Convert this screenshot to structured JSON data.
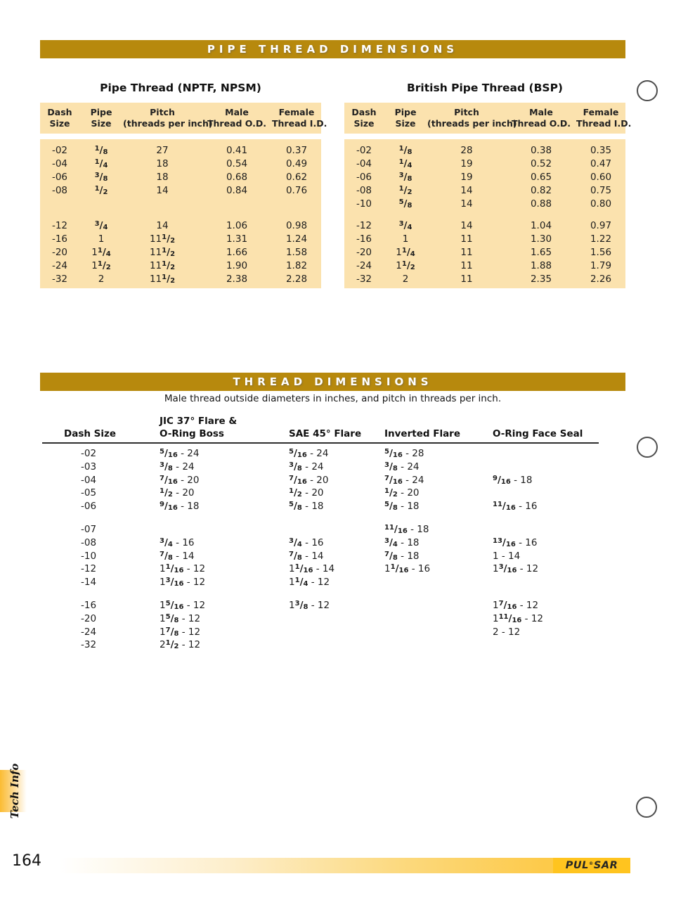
{
  "page": {
    "number": "164",
    "side_tab_label": "Tech Info",
    "footer_logo": {
      "pre": "PUL",
      "reg": "®",
      "post": "SAR"
    }
  },
  "colors": {
    "banner_gold": "#b7890d",
    "table_peach": "#fbe2ae",
    "footer_yellow": "#ffc41f"
  },
  "pipe_thread": {
    "banner": "PIPE THREAD DIMENSIONS",
    "tables": [
      {
        "title": "Pipe Thread (NPTF, NPSM)",
        "headers": [
          [
            "Dash",
            "Size"
          ],
          [
            "Pipe",
            "Size"
          ],
          [
            "Pitch",
            "(threads per inch)"
          ],
          [
            "Male",
            "Thread O.D."
          ],
          [
            "Female",
            "Thread I.D."
          ]
        ],
        "group1": [
          [
            "-02",
            "1/8",
            "27",
            "0.41",
            "0.37"
          ],
          [
            "-04",
            "1/4",
            "18",
            "0.54",
            "0.49"
          ],
          [
            "-06",
            "3/8",
            "18",
            "0.68",
            "0.62"
          ],
          [
            "-08",
            "1/2",
            "14",
            "0.84",
            "0.76"
          ]
        ],
        "group2": [
          [
            "-12",
            "3/4",
            "14",
            "1.06",
            "0.98"
          ],
          [
            "-16",
            "1",
            "11 1/2",
            "1.31",
            "1.24"
          ],
          [
            "-20",
            "1 1/4",
            "11 1/2",
            "1.66",
            "1.58"
          ],
          [
            "-24",
            "1 1/2",
            "11 1/2",
            "1.90",
            "1.82"
          ],
          [
            "-32",
            "2",
            "11 1/2",
            "2.38",
            "2.28"
          ]
        ]
      },
      {
        "title": "British Pipe Thread (BSP)",
        "headers": [
          [
            "Dash",
            "Size"
          ],
          [
            "Pipe",
            "Size"
          ],
          [
            "Pitch",
            "(threads per inch)"
          ],
          [
            "Male",
            "Thread O.D."
          ],
          [
            "Female",
            "Thread I.D."
          ]
        ],
        "group1": [
          [
            "-02",
            "1/8",
            "28",
            "0.38",
            "0.35"
          ],
          [
            "-04",
            "1/4",
            "19",
            "0.52",
            "0.47"
          ],
          [
            "-06",
            "3/8",
            "19",
            "0.65",
            "0.60"
          ],
          [
            "-08",
            "1/2",
            "14",
            "0.82",
            "0.75"
          ],
          [
            "-10",
            "5/8",
            "14",
            "0.88",
            "0.80"
          ]
        ],
        "group2": [
          [
            "-12",
            "3/4",
            "14",
            "1.04",
            "0.97"
          ],
          [
            "-16",
            "1",
            "11",
            "1.30",
            "1.22"
          ],
          [
            "-20",
            "1 1/4",
            "11",
            "1.65",
            "1.56"
          ],
          [
            "-24",
            "1 1/2",
            "11",
            "1.88",
            "1.79"
          ],
          [
            "-32",
            "2",
            "11",
            "2.35",
            "2.26"
          ]
        ]
      }
    ]
  },
  "thread_dimensions": {
    "banner": "THREAD DIMENSIONS",
    "subtitle": "Male thread outside diameters in inches, and pitch in threads per inch.",
    "headers": {
      "dash": "Dash Size",
      "jic_line1": "JIC 37° Flare &",
      "jic_line2": "O-Ring Boss",
      "sae": "SAE 45° Flare",
      "inverted": "Inverted Flare",
      "orfs": "O-Ring Face Seal"
    },
    "group1": [
      [
        "-02",
        "5/16 - 24",
        "5/16 - 24",
        "5/16 - 28",
        ""
      ],
      [
        "-03",
        "3/8 - 24",
        "3/8 - 24",
        "3/8 - 24",
        ""
      ],
      [
        "-04",
        "7/16 - 20",
        "7/16 - 20",
        "7/16 - 24",
        "9/16 - 18"
      ],
      [
        "-05",
        "1/2 - 20",
        "1/2 - 20",
        "1/2 - 20",
        ""
      ],
      [
        "-06",
        "9/16 - 18",
        "5/8 - 18",
        "5/8 - 18",
        "11/16 - 16"
      ]
    ],
    "group2": [
      [
        "-07",
        "",
        "",
        "11/16 - 18",
        ""
      ],
      [
        "-08",
        "3/4 - 16",
        "3/4 - 16",
        "3/4 - 18",
        "13/16 - 16"
      ],
      [
        "-10",
        "7/8 - 14",
        "7/8 - 14",
        "7/8 - 18",
        "1 - 14"
      ],
      [
        "-12",
        "1 1/16 - 12",
        "1 1/16 - 14",
        "1 1/16 - 16",
        "1 3/16 - 12"
      ],
      [
        "-14",
        "1 3/16 - 12",
        "1 1/4 - 12",
        "",
        ""
      ]
    ],
    "group3": [
      [
        "-16",
        "1 5/16 - 12",
        "1 3/8 - 12",
        "",
        "1 7/16 - 12"
      ],
      [
        "-20",
        "1 5/8 - 12",
        "",
        "",
        "1 11/16 - 12"
      ],
      [
        "-24",
        "1 7/8 - 12",
        "",
        "",
        "2 - 12"
      ],
      [
        "-32",
        "2 1/2 - 12",
        "",
        "",
        ""
      ]
    ]
  }
}
